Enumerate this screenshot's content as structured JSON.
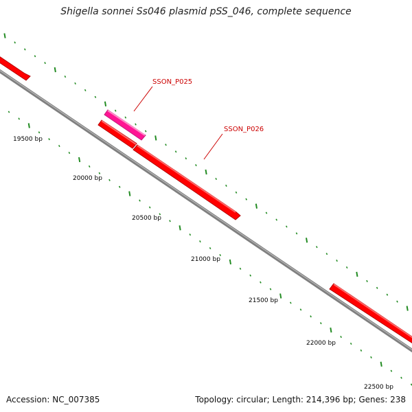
{
  "header": {
    "title": "Shigella sonnei Ss046 plasmid pSS_046, complete sequence"
  },
  "footer": {
    "accession": "Accession: NC_007385",
    "summary": "Topology: circular; Length: 214,396 bp; Genes: 238"
  },
  "map": {
    "scale_labels": [
      "19500 bp",
      "20000 bp",
      "20500 bp",
      "21000 bp",
      "21500 bp",
      "22000 bp",
      "22500 bp"
    ],
    "genes": [
      {
        "id": "SSON_P025",
        "label": "SSON_P025",
        "color": "#ff1493"
      },
      {
        "id": "SSON_P026",
        "label": "SSON_P026",
        "color": "#ff0000"
      }
    ],
    "colors": {
      "backbone": "#808080",
      "ticks": "#228b22",
      "gene_forward": "#ff0000",
      "gene_highlight": "#ff1493",
      "gene_label": "#cc0000"
    }
  }
}
